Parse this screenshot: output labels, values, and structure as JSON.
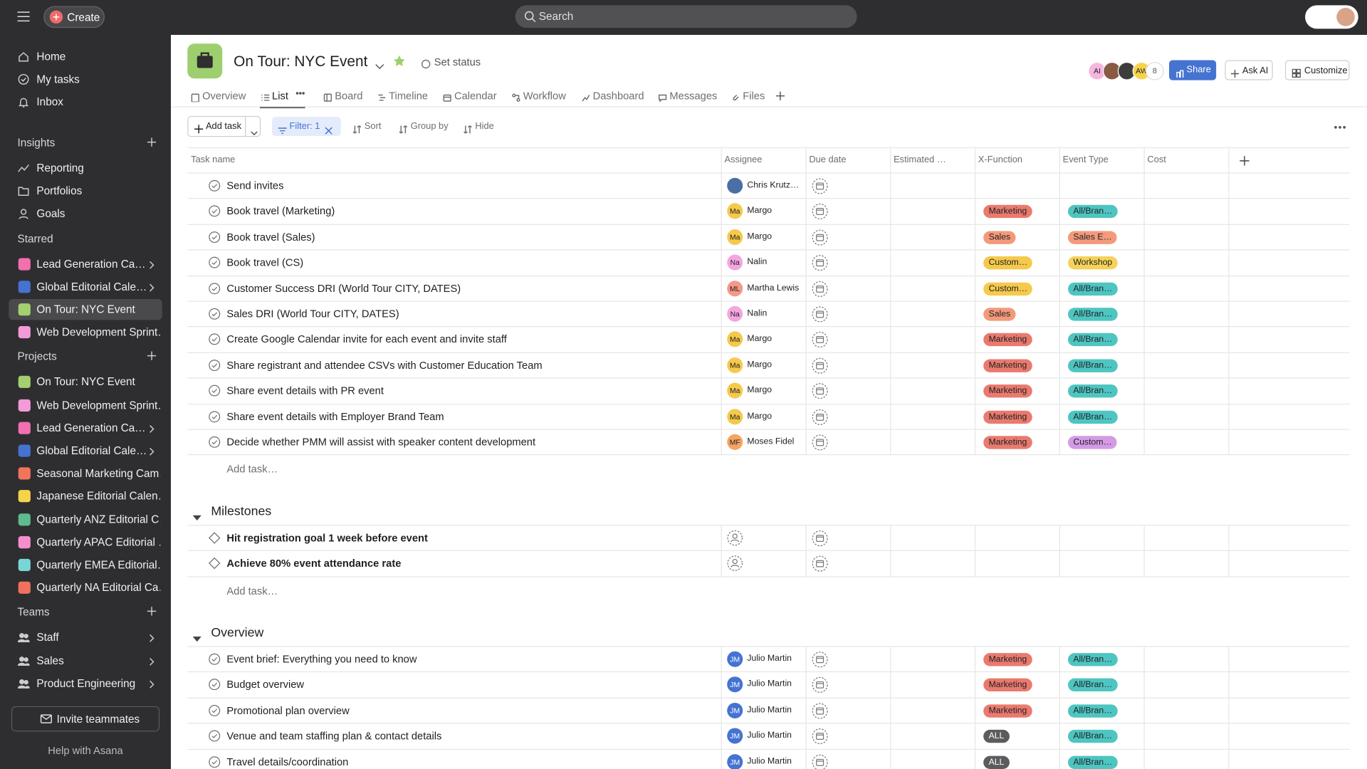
{
  "topbar": {
    "create": "Create",
    "search": "Search"
  },
  "sidebar": {
    "nav": [
      "Home",
      "My tasks",
      "Inbox"
    ],
    "sections": [
      {
        "title": "Insights",
        "add": true,
        "items": [
          {
            "label": "Reporting"
          },
          {
            "label": "Portfolios"
          },
          {
            "label": "Goals"
          }
        ]
      },
      {
        "title": "Starred",
        "add": false,
        "items": [
          {
            "label": "Lead Generation Ca…",
            "color": "#f26fb0",
            "expandable": true
          },
          {
            "label": "Global Editorial Cale…",
            "color": "#4573d2",
            "expandable": true
          },
          {
            "label": "On Tour: NYC Event",
            "color": "#a4cf6e",
            "selected": true
          },
          {
            "label": "Web Development Sprint…",
            "color": "#f39ad9"
          }
        ]
      },
      {
        "title": "Projects",
        "add": true,
        "items": [
          {
            "label": "On Tour: NYC Event",
            "color": "#a4cf6e"
          },
          {
            "label": "Web Development Sprint…",
            "color": "#f39ad9"
          },
          {
            "label": "Lead Generation Ca…",
            "color": "#f26fb0",
            "expandable": true
          },
          {
            "label": "Global Editorial Cale…",
            "color": "#4573d2",
            "expandable": true
          },
          {
            "label": "Seasonal Marketing Cam…",
            "color": "#f1755c"
          },
          {
            "label": "Japanese Editorial Calen…",
            "color": "#f8d34a"
          },
          {
            "label": "Quarterly ANZ Editorial C…",
            "color": "#5dbb8d"
          },
          {
            "label": "Quarterly APAC Editorial …",
            "color": "#f48ecf"
          },
          {
            "label": "Quarterly EMEA Editorial…",
            "color": "#7ad6d6"
          },
          {
            "label": "Quarterly NA Editorial Ca…",
            "color": "#f1705f"
          }
        ]
      },
      {
        "title": "Teams",
        "add": true,
        "items": [
          {
            "label": "Staff",
            "expandable": true
          },
          {
            "label": "Sales",
            "expandable": true
          },
          {
            "label": "Product Engineering",
            "expandable": true
          }
        ]
      }
    ],
    "invite": "Invite teammates",
    "help": "Help with Asana"
  },
  "header": {
    "title": "On Tour: NYC Event",
    "set_status": "Set status",
    "members": [
      {
        "initials": "AI",
        "color": "#f5b6e0"
      },
      {
        "color": "#8a5a44"
      },
      {
        "color": "#3d3d3d"
      },
      {
        "initials": "AW",
        "color": "#f8d34a"
      }
    ],
    "member_count": 8,
    "share": "Share",
    "ask_ai": "Ask AI",
    "customize": "Customize",
    "tabs": [
      "Overview",
      "List",
      "Board",
      "Timeline",
      "Calendar",
      "Workflow",
      "Dashboard",
      "Messages",
      "Files"
    ],
    "active_tab": 1
  },
  "toolbar": {
    "add_task": "Add task",
    "filter": "Filter: 1",
    "sort": "Sort",
    "group_by": "Group by",
    "hide": "Hide"
  },
  "table": {
    "columns": [
      "Task name",
      "Assignee",
      "Due date",
      "Estimated …",
      "X-Function",
      "Event Type",
      "Cost"
    ],
    "add_task": "Add task…",
    "sections": [
      {
        "rows": [
          {
            "name": "Send invites",
            "assignee": {
              "name": "Chris Krutz…",
              "color": "#4a6fa5"
            }
          },
          {
            "name": "Book travel (Marketing)",
            "assignee": {
              "initials": "Ma",
              "name": "Margo",
              "color": "#f5c94c"
            },
            "x_function": {
              "label": "Marketing",
              "color": "#ea7a6e"
            },
            "event_type": {
              "label": "All/Bran…",
              "color": "#4ec5c1"
            }
          },
          {
            "name": "Book travel (Sales)",
            "assignee": {
              "initials": "Ma",
              "name": "Margo",
              "color": "#f5c94c"
            },
            "x_function": {
              "label": "Sales",
              "color": "#f39a7c"
            },
            "event_type": {
              "label": "Sales E…",
              "color": "#f39a7c"
            }
          },
          {
            "name": "Book travel (CS)",
            "assignee": {
              "initials": "Na",
              "name": "Nalin",
              "color": "#f3a6e0"
            },
            "x_function": {
              "label": "Custom…",
              "color": "#f5c94c"
            },
            "event_type": {
              "label": "Workshop",
              "color": "#f5d35a"
            }
          },
          {
            "name": "Customer Success DRI (World Tour CITY, DATES)",
            "assignee": {
              "initials": "ML",
              "name": "Martha Lewis",
              "color": "#f4998a"
            },
            "x_function": {
              "label": "Custom…",
              "color": "#f5c94c"
            },
            "event_type": {
              "label": "All/Bran…",
              "color": "#4ec5c1"
            }
          },
          {
            "name": "Sales DRI (World Tour CITY, DATES)",
            "assignee": {
              "initials": "Na",
              "name": "Nalin",
              "color": "#f3a6e0"
            },
            "x_function": {
              "label": "Sales",
              "color": "#f39a7c"
            },
            "event_type": {
              "label": "All/Bran…",
              "color": "#4ec5c1"
            }
          },
          {
            "name": "Create Google Calendar invite for each event and invite staff",
            "assignee": {
              "initials": "Ma",
              "name": "Margo",
              "color": "#f5c94c"
            },
            "x_function": {
              "label": "Marketing",
              "color": "#ea7a6e"
            },
            "event_type": {
              "label": "All/Bran…",
              "color": "#4ec5c1"
            }
          },
          {
            "name": "Share registrant and attendee CSVs with Customer Education Team",
            "assignee": {
              "initials": "Ma",
              "name": "Margo",
              "color": "#f5c94c"
            },
            "x_function": {
              "label": "Marketing",
              "color": "#ea7a6e"
            },
            "event_type": {
              "label": "All/Bran…",
              "color": "#4ec5c1"
            }
          },
          {
            "name": "Share event details with PR event",
            "assignee": {
              "initials": "Ma",
              "name": "Margo",
              "color": "#f5c94c"
            },
            "x_function": {
              "label": "Marketing",
              "color": "#ea7a6e"
            },
            "event_type": {
              "label": "All/Bran…",
              "color": "#4ec5c1"
            }
          },
          {
            "name": "Share event details with Employer Brand Team",
            "assignee": {
              "initials": "Ma",
              "name": "Margo",
              "color": "#f5c94c"
            },
            "x_function": {
              "label": "Marketing",
              "color": "#ea7a6e"
            },
            "event_type": {
              "label": "All/Bran…",
              "color": "#4ec5c1"
            }
          },
          {
            "name": "Decide whether PMM will assist with speaker content development",
            "assignee": {
              "initials": "MF",
              "name": "Moses Fidel",
              "color": "#f5a462"
            },
            "x_function": {
              "label": "Marketing",
              "color": "#ea7a6e"
            },
            "event_type": {
              "label": "Custom…",
              "color": "#d39be6"
            }
          }
        ]
      },
      {
        "title": "Milestones",
        "milestone": true,
        "rows": [
          {
            "name": "Hit registration goal 1 week before event"
          },
          {
            "name": "Achieve 80% event attendance rate"
          }
        ]
      },
      {
        "title": "Overview",
        "rows": [
          {
            "name": "Event brief: Everything you need to know",
            "assignee": {
              "initials": "JM",
              "name": "Julio Martin",
              "color": "#4573d2"
            },
            "x_function": {
              "label": "Marketing",
              "color": "#ea7a6e"
            },
            "event_type": {
              "label": "All/Bran…",
              "color": "#4ec5c1"
            }
          },
          {
            "name": "Budget overview",
            "assignee": {
              "initials": "JM",
              "name": "Julio Martin",
              "color": "#4573d2"
            },
            "x_function": {
              "label": "Marketing",
              "color": "#ea7a6e"
            },
            "event_type": {
              "label": "All/Bran…",
              "color": "#4ec5c1"
            }
          },
          {
            "name": "Promotional plan overview",
            "assignee": {
              "initials": "JM",
              "name": "Julio Martin",
              "color": "#4573d2"
            },
            "x_function": {
              "label": "Marketing",
              "color": "#ea7a6e"
            },
            "event_type": {
              "label": "All/Bran…",
              "color": "#4ec5c1"
            }
          },
          {
            "name": "Venue and team staffing plan & contact details",
            "assignee": {
              "initials": "JM",
              "name": "Julio Martin",
              "color": "#4573d2"
            },
            "x_function": {
              "label": "ALL",
              "color": "#5c5c5e"
            },
            "event_type": {
              "label": "All/Bran…",
              "color": "#4ec5c1"
            }
          },
          {
            "name": "Travel details/coordination",
            "assignee": {
              "initials": "JM",
              "name": "Julio Martin",
              "color": "#4573d2"
            },
            "x_function": {
              "label": "ALL",
              "color": "#5c5c5e"
            },
            "event_type": {
              "label": "All/Bran…",
              "color": "#4ec5c1"
            }
          }
        ]
      }
    ]
  }
}
